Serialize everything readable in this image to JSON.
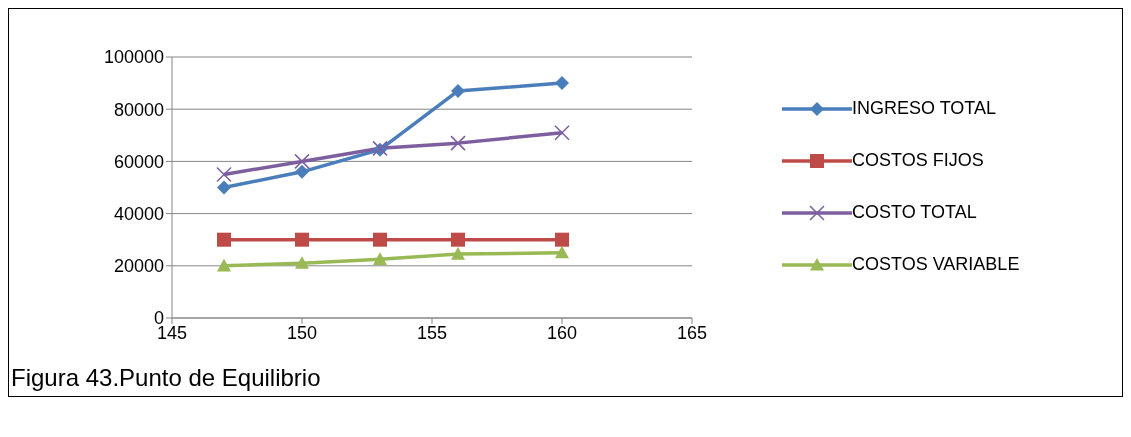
{
  "chart_data": {
    "type": "line",
    "annotations": [
      "Figura 43.Punto de Equilibrio"
    ],
    "x": [
      147,
      150,
      153,
      156,
      160
    ],
    "series": [
      {
        "name": "INGRESO TOTAL",
        "color": "#4a7ebb",
        "marker": "diamond",
        "values": [
          50000,
          56000,
          64500,
          87000,
          90000
        ]
      },
      {
        "name": "COSTOS FIJOS",
        "color": "#be4b48",
        "marker": "square",
        "values": [
          30000,
          30000,
          30000,
          30000,
          30000
        ]
      },
      {
        "name": "COSTO TOTAL",
        "color": "#7d5fa0",
        "marker": "cross",
        "values": [
          55000,
          60000,
          65000,
          67000,
          71000
        ]
      },
      {
        "name": "COSTOS VARIABLE",
        "color": "#98b954",
        "marker": "triangle",
        "values": [
          20000,
          21000,
          22500,
          24500,
          25000
        ]
      }
    ],
    "xlim": [
      145,
      165
    ],
    "xticks": [
      145,
      150,
      155,
      160,
      165
    ],
    "ylim": [
      0,
      100000
    ],
    "yticks": [
      0,
      20000,
      40000,
      60000,
      80000,
      100000
    ],
    "grid": "y",
    "legend": "right",
    "line_style": "solid"
  }
}
